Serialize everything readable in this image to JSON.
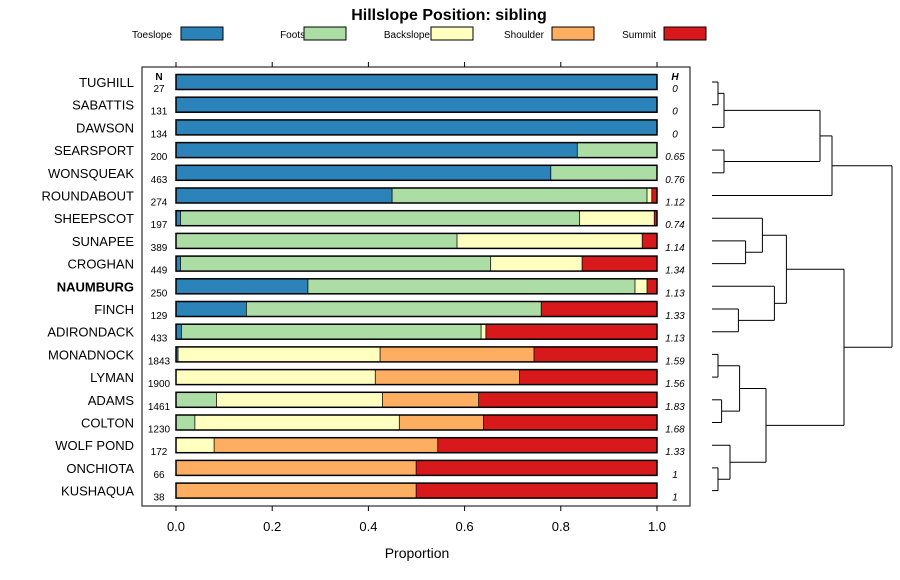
{
  "chart_data": {
    "type": "bar",
    "orientation": "horizontal",
    "stacked": true,
    "title": "Hillslope Position: sibling",
    "xlabel": "Proportion",
    "ylabel": "",
    "xlim": [
      0,
      1
    ],
    "x_ticks": [
      "0.0",
      "0.2",
      "0.4",
      "0.6",
      "0.8",
      "1.0"
    ],
    "x_tick_values": [
      0,
      0.2,
      0.4,
      0.6,
      0.8,
      1.0
    ],
    "n_header": "N",
    "h_header": "H",
    "legend_position": "top",
    "legend": [
      {
        "name": "Toeslope",
        "color": "#2b83ba"
      },
      {
        "name": "Footslope",
        "color": "#abdda4"
      },
      {
        "name": "Backslope",
        "color": "#ffffbf"
      },
      {
        "name": "Shoulder",
        "color": "#fdae61"
      },
      {
        "name": "Summit",
        "color": "#d7191c"
      }
    ],
    "rows": [
      {
        "name": "TUGHILL",
        "n": "27",
        "h": "0",
        "bold": false,
        "values": [
          1.0,
          0,
          0,
          0,
          0
        ]
      },
      {
        "name": "SABATTIS",
        "n": "131",
        "h": "0",
        "bold": false,
        "values": [
          1.0,
          0,
          0,
          0,
          0
        ]
      },
      {
        "name": "DAWSON",
        "n": "134",
        "h": "0",
        "bold": false,
        "values": [
          1.0,
          0,
          0,
          0,
          0
        ]
      },
      {
        "name": "SEARSPORT",
        "n": "200",
        "h": "0.65",
        "bold": false,
        "values": [
          0.835,
          0.165,
          0,
          0,
          0
        ]
      },
      {
        "name": "WONSQUEAK",
        "n": "463",
        "h": "0.76",
        "bold": false,
        "values": [
          0.78,
          0.22,
          0,
          0,
          0
        ]
      },
      {
        "name": "ROUNDABOUT",
        "n": "274",
        "h": "1.12",
        "bold": false,
        "values": [
          0.45,
          0.53,
          0.01,
          0,
          0.01
        ]
      },
      {
        "name": "SHEEPSCOT",
        "n": "197",
        "h": "0.74",
        "bold": false,
        "values": [
          0.01,
          0.83,
          0.155,
          0,
          0.005
        ]
      },
      {
        "name": "SUNAPEE",
        "n": "389",
        "h": "1.14",
        "bold": false,
        "values": [
          0,
          0.585,
          0.385,
          0,
          0.03
        ]
      },
      {
        "name": "CROGHAN",
        "n": "449",
        "h": "1.34",
        "bold": false,
        "values": [
          0.01,
          0.645,
          0.19,
          0,
          0.155
        ]
      },
      {
        "name": "NAUMBURG",
        "n": "250",
        "h": "1.13",
        "bold": true,
        "values": [
          0.275,
          0.68,
          0.025,
          0,
          0.02
        ]
      },
      {
        "name": "FINCH",
        "n": "129",
        "h": "1.33",
        "bold": false,
        "values": [
          0.147,
          0.613,
          0,
          0,
          0.24
        ]
      },
      {
        "name": "ADIRONDACK",
        "n": "433",
        "h": "1.13",
        "bold": false,
        "values": [
          0.012,
          0.623,
          0.01,
          0,
          0.355
        ]
      },
      {
        "name": "MONADNOCK",
        "n": "1843",
        "h": "1.59",
        "bold": false,
        "values": [
          0.005,
          0,
          0.42,
          0.32,
          0.255
        ]
      },
      {
        "name": "LYMAN",
        "n": "1900",
        "h": "1.56",
        "bold": false,
        "values": [
          0,
          0,
          0.415,
          0.3,
          0.285
        ]
      },
      {
        "name": "ADAMS",
        "n": "1461",
        "h": "1.83",
        "bold": false,
        "values": [
          0,
          0.085,
          0.345,
          0.2,
          0.37
        ]
      },
      {
        "name": "COLTON",
        "n": "1230",
        "h": "1.68",
        "bold": false,
        "values": [
          0,
          0.04,
          0.425,
          0.175,
          0.36
        ]
      },
      {
        "name": "WOLF POND",
        "n": "172",
        "h": "1.33",
        "bold": false,
        "values": [
          0,
          0,
          0.08,
          0.465,
          0.455
        ]
      },
      {
        "name": "ONCHIOTA",
        "n": "66",
        "h": "1",
        "bold": false,
        "values": [
          0,
          0,
          0,
          0.5,
          0.5
        ]
      },
      {
        "name": "KUSHAQUA",
        "n": "38",
        "h": "1",
        "bold": false,
        "values": [
          0,
          0,
          0,
          0.5,
          0.5
        ]
      }
    ],
    "dendrogram": {
      "merges": [
        {
          "a": "TUGHILL",
          "b": "SABATTIS",
          "height": 0.05
        },
        {
          "a": "m1",
          "b": "DAWSON",
          "height": 0.1
        },
        {
          "a": "SEARSPORT",
          "b": "WONSQUEAK",
          "height": 0.1
        },
        {
          "a": "m2",
          "b": "m3",
          "height": 0.9
        },
        {
          "a": "ROUNDABOUT",
          "b": "m4",
          "height": 1.0
        },
        {
          "a": "SUNAPEE",
          "b": "CROGHAN",
          "height": 0.28
        },
        {
          "a": "SHEEPSCOT",
          "b": "m6",
          "height": 0.42
        },
        {
          "a": "FINCH",
          "b": "ADIRONDACK",
          "height": 0.22
        },
        {
          "a": "NAUMBURG",
          "b": "m8",
          "height": 0.52
        },
        {
          "a": "m7",
          "b": "m9",
          "height": 0.62
        },
        {
          "a": "MONADNOCK",
          "b": "LYMAN",
          "height": 0.05
        },
        {
          "a": "ADAMS",
          "b": "COLTON",
          "height": 0.08
        },
        {
          "a": "m11",
          "b": "m12",
          "height": 0.23
        },
        {
          "a": "ONCHIOTA",
          "b": "KUSHAQUA",
          "height": 0.05
        },
        {
          "a": "WOLF POND",
          "b": "m14",
          "height": 0.15
        },
        {
          "a": "m13",
          "b": "m15",
          "height": 0.45
        },
        {
          "a": "m10",
          "b": "m16",
          "height": 1.1
        },
        {
          "a": "m5",
          "b": "m17",
          "height": 1.5
        }
      ]
    }
  }
}
